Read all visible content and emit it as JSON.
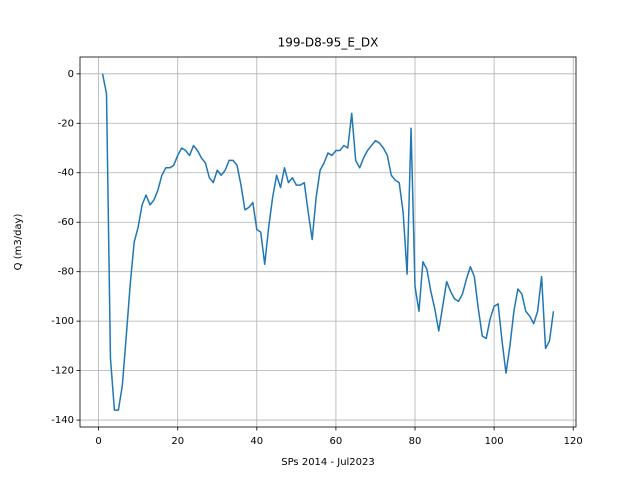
{
  "chart_data": {
    "type": "line",
    "title": "199-D8-95_E_DX",
    "xlabel": "SPs 2014 - Jul2023",
    "ylabel": "Q (m3/day)",
    "x": [
      1,
      2,
      3,
      4,
      5,
      6,
      7,
      8,
      9,
      10,
      11,
      12,
      13,
      14,
      15,
      16,
      17,
      18,
      19,
      20,
      21,
      22,
      23,
      24,
      25,
      26,
      27,
      28,
      29,
      30,
      31,
      32,
      33,
      34,
      35,
      36,
      37,
      38,
      39,
      40,
      41,
      42,
      43,
      44,
      45,
      46,
      47,
      48,
      49,
      50,
      51,
      52,
      53,
      54,
      55,
      56,
      57,
      58,
      59,
      60,
      61,
      62,
      63,
      64,
      65,
      66,
      67,
      68,
      69,
      70,
      71,
      72,
      73,
      74,
      75,
      76,
      77,
      78,
      79,
      80,
      81,
      82,
      83,
      84,
      85,
      86,
      87,
      88,
      89,
      90,
      91,
      92,
      93,
      94,
      95,
      96,
      97,
      98,
      99,
      100,
      101,
      102,
      103,
      104,
      105,
      106,
      107,
      108,
      109,
      110,
      111,
      112,
      113,
      114,
      115
    ],
    "series": [
      {
        "name": "Q",
        "color": "#1f77b4",
        "values": [
          0,
          -8,
          -115,
          -136,
          -136,
          -126,
          -106,
          -85,
          -68,
          -62,
          -53,
          -49,
          -53,
          -51,
          -47,
          -41,
          -38,
          -38,
          -37,
          -33,
          -30,
          -31,
          -33,
          -29,
          -31,
          -34,
          -36,
          -42,
          -44,
          -39,
          -41,
          -39,
          -35,
          -35,
          -37,
          -45,
          -55,
          -54,
          -52,
          -63,
          -64,
          -77,
          -62,
          -50,
          -41,
          -46,
          -38,
          -44,
          -42,
          -45,
          -45,
          -44,
          -56,
          -67,
          -50,
          -39,
          -36,
          -32,
          -33,
          -31,
          -31,
          -29,
          -30,
          -16,
          -35,
          -38,
          -34,
          -31,
          -29,
          -27,
          -28,
          -30,
          -33,
          -41,
          -43,
          -44,
          -56,
          -81,
          -22,
          -86,
          -96,
          -76,
          -79,
          -88,
          -95,
          -104,
          -94,
          -84,
          -88,
          -91,
          -92,
          -89,
          -83,
          -78,
          -82,
          -95,
          -106,
          -107,
          -99,
          -94,
          -93,
          -108,
          -121,
          -110,
          -96,
          -87,
          -89,
          -96,
          -98,
          -101,
          -96,
          -82,
          -111,
          -108,
          -96
        ]
      }
    ],
    "xlim": [
      -4.7,
      120.7
    ],
    "ylim": [
      -142.8,
      6.8
    ],
    "xticks": [
      0,
      20,
      40,
      60,
      80,
      100,
      120
    ],
    "yticks": [
      0,
      -20,
      -40,
      -60,
      -80,
      -100,
      -120,
      -140
    ],
    "grid": true
  }
}
